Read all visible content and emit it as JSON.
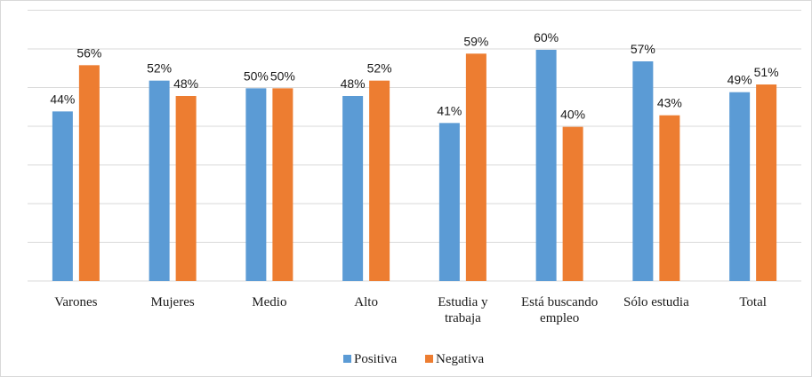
{
  "chart_data": {
    "type": "bar",
    "categories": [
      [
        "Varones"
      ],
      [
        "Mujeres"
      ],
      [
        "Medio"
      ],
      [
        "Alto"
      ],
      [
        "Estudia y",
        "trabaja"
      ],
      [
        "Está buscando",
        "empleo"
      ],
      [
        "Sólo estudia"
      ],
      [
        "Total"
      ]
    ],
    "series": [
      {
        "name": "Positiva",
        "color": "#5B9BD5",
        "values": [
          44,
          52,
          50,
          48,
          41,
          60,
          57,
          49
        ]
      },
      {
        "name": "Negativa",
        "color": "#ED7D31",
        "values": [
          56,
          48,
          50,
          52,
          59,
          40,
          43,
          51
        ]
      }
    ],
    "value_suffix": "%",
    "ylim": [
      0,
      60
    ],
    "grid": true,
    "legend_position": "bottom"
  }
}
